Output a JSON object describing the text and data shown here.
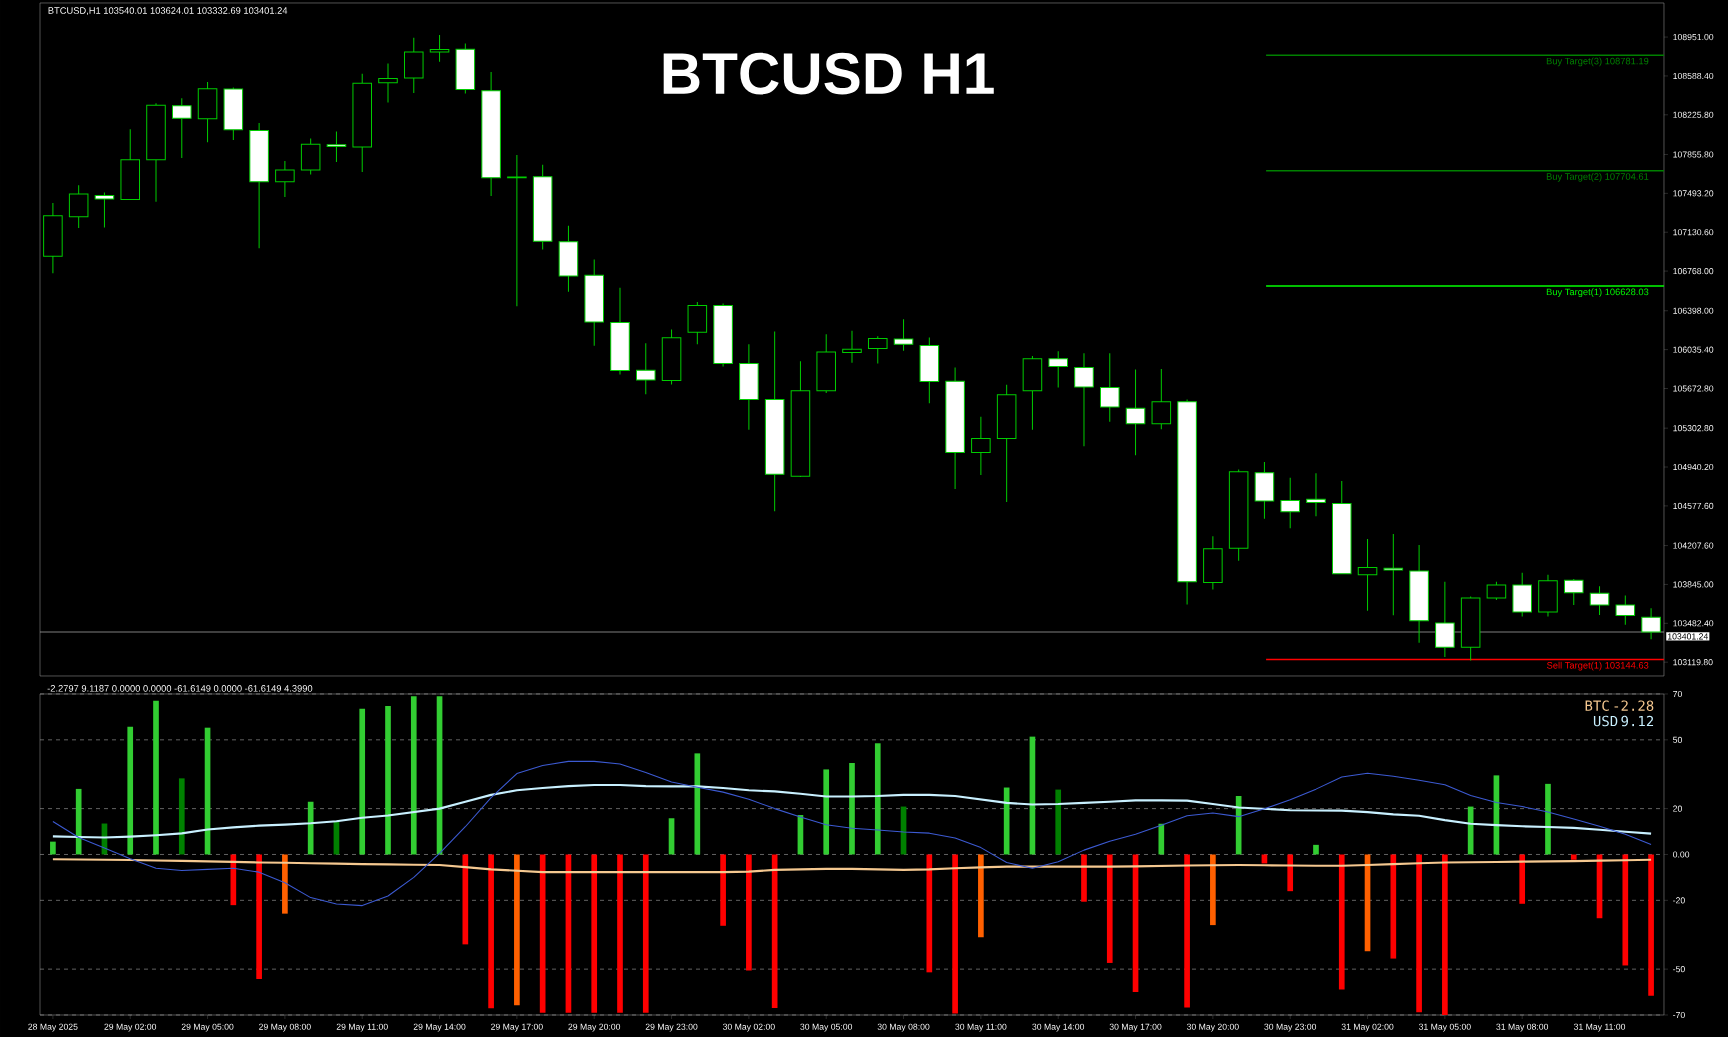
{
  "chart_data": [
    {
      "type": "candlestick",
      "title": "BTCUSD H1",
      "annotations": [
        "BTCUSD,H1  103540.01 103624.01 103332.69 103401.24"
      ],
      "categories": [
        null,
        null,
        null,
        null,
        null,
        null,
        null,
        null,
        null,
        null,
        null,
        null,
        null,
        null,
        null,
        null,
        null,
        null,
        null,
        null,
        null,
        null,
        null,
        null,
        null,
        null,
        null,
        null,
        null,
        null,
        null,
        null,
        null,
        null,
        null,
        null,
        null,
        null,
        null,
        null,
        null,
        null,
        null,
        null,
        null,
        null,
        null,
        null,
        null,
        null,
        null,
        null,
        null,
        null,
        null,
        null,
        null,
        null,
        null,
        null,
        null,
        null,
        null
      ],
      "ohlc": [
        [
          106906,
          107403,
          106748,
          107285
        ],
        [
          107274,
          107568,
          107171,
          107487
        ],
        [
          107473,
          107502,
          107175,
          107440
        ],
        [
          107436,
          108091,
          107430,
          107807
        ],
        [
          107807,
          108333,
          107414,
          108315
        ],
        [
          108311,
          108381,
          107822,
          108194
        ],
        [
          108190,
          108532,
          107969,
          108469
        ],
        [
          108466,
          108481,
          107991,
          108087
        ],
        [
          108080,
          108149,
          106980,
          107601
        ],
        [
          107601,
          107796,
          107458,
          107712
        ],
        [
          107712,
          108006,
          107668,
          107951
        ],
        [
          107947,
          108069,
          107785,
          107929
        ],
        [
          107925,
          108609,
          107693,
          108521
        ],
        [
          108525,
          108705,
          108341,
          108565
        ],
        [
          108569,
          108944,
          108429,
          108812
        ],
        [
          108812,
          108970,
          108720,
          108834
        ],
        [
          108837,
          108892,
          108425,
          108462
        ],
        [
          108451,
          108624,
          107469,
          107638
        ],
        [
          107638,
          107852,
          106439,
          107645
        ],
        [
          107649,
          107760,
          106969,
          107046
        ],
        [
          107042,
          107190,
          106575,
          106722
        ],
        [
          106730,
          106877,
          106071,
          106292
        ],
        [
          106288,
          106612,
          105803,
          105840
        ],
        [
          105843,
          106094,
          105619,
          105752
        ],
        [
          105748,
          106222,
          105711,
          106145
        ],
        [
          106197,
          106480,
          106086,
          106447
        ],
        [
          106447,
          106465,
          105877,
          105906
        ],
        [
          105906,
          106086,
          105288,
          105571
        ],
        [
          105571,
          106204,
          104527,
          104872
        ],
        [
          104854,
          105928,
          104847,
          105652
        ],
        [
          105652,
          106178,
          105630,
          106013
        ],
        [
          106009,
          106211,
          105913,
          106038
        ],
        [
          106046,
          106160,
          105906,
          106138
        ],
        [
          106134,
          106318,
          106024,
          106086
        ],
        [
          106075,
          106149,
          105534,
          105737
        ],
        [
          105740,
          105869,
          104736,
          105075
        ],
        [
          105075,
          105409,
          104865,
          105207
        ],
        [
          105207,
          105707,
          104615,
          105615
        ],
        [
          105652,
          105976,
          105288,
          105950
        ],
        [
          105950,
          106020,
          105682,
          105877
        ],
        [
          105868,
          106002,
          105133,
          105686
        ],
        [
          105682,
          106002,
          105362,
          105500
        ],
        [
          105488,
          105851,
          105051,
          105345
        ],
        [
          105345,
          105855,
          105293,
          105548
        ],
        [
          105548,
          105570,
          103658,
          103870
        ],
        [
          103862,
          104294,
          103797,
          104177
        ],
        [
          104182,
          104917,
          104065,
          104895
        ],
        [
          104887,
          104986,
          104458,
          104623
        ],
        [
          104627,
          104839,
          104368,
          104523
        ],
        [
          104640,
          104882,
          104480,
          104610
        ],
        [
          104601,
          104809,
          103940,
          103944
        ],
        [
          103935,
          104268,
          103599,
          104004
        ],
        [
          103996,
          104316,
          103558,
          103979
        ],
        [
          103970,
          104212,
          103301,
          103506
        ],
        [
          103486,
          103870,
          103168,
          103260
        ],
        [
          103258,
          103732,
          103135,
          103719
        ],
        [
          103719,
          103870,
          103700,
          103840
        ],
        [
          103840,
          103953,
          103546,
          103589
        ],
        [
          103589,
          103935,
          103546,
          103879
        ],
        [
          103883,
          103895,
          103654,
          103767
        ],
        [
          103762,
          103827,
          103560,
          103654
        ],
        [
          103654,
          103741,
          103470,
          103556
        ],
        [
          103540.01,
          103624.01,
          103332.69,
          103401.24
        ]
      ],
      "color": "#00cc00",
      "ylim": [
        102991,
        109269
      ],
      "yticks": [
        {
          "value": 108951,
          "label": "108951.00"
        },
        {
          "value": 108588.4,
          "label": "108588.40"
        },
        {
          "value": 108225.8,
          "label": "108225.80"
        },
        {
          "value": 107855.8,
          "label": "107855.80"
        },
        {
          "value": 107493.2,
          "label": "107493.20"
        },
        {
          "value": 107130.6,
          "label": "107130.60"
        },
        {
          "value": 106768,
          "label": "106768.00"
        },
        {
          "value": 106398,
          "label": "106398.00"
        },
        {
          "value": 106035.4,
          "label": "106035.40"
        },
        {
          "value": 105672.8,
          "label": "105672.80"
        },
        {
          "value": 105302.8,
          "label": "105302.80"
        },
        {
          "value": 104940.2,
          "label": "104940.20"
        },
        {
          "value": 104577.6,
          "label": "104577.60"
        },
        {
          "value": 104207.6,
          "label": "104207.60"
        },
        {
          "value": 103845,
          "label": "103845.00"
        },
        {
          "value": 103482.4,
          "label": "103482.40"
        },
        {
          "value": 103119.8,
          "label": "103119.80"
        }
      ],
      "ref_lines": [
        {
          "axis": "y",
          "value": 103401.24,
          "label": "103401.24",
          "color": "#a0a0a0"
        },
        {
          "axis": "y",
          "value": 108781.19,
          "label": "Buy Target(3) 108781.19",
          "color": "#008000"
        },
        {
          "axis": "y",
          "value": 107704.61,
          "label": "Buy Target(2) 107704.61",
          "color": "#008000"
        },
        {
          "axis": "y",
          "value": 106628.03,
          "label": "Buy Target(1) 106628.03",
          "color": "#00ff00"
        },
        {
          "axis": "y",
          "value": 103144.63,
          "label": "Sell Target(1) 103144.63",
          "color": "#ff0000"
        }
      ],
      "tick_labels": "y"
    },
    {
      "type": "bar",
      "subtitle": "-2.2797 9.1187 0.0000 0.0000 -61.6149 0.0000 -61.6149 4.3990",
      "categories": [
        "28 May 2025",
        null,
        null,
        "29 May 02:00",
        null,
        null,
        "29 May 05:00",
        null,
        null,
        "29 May 08:00",
        null,
        null,
        "29 May 11:00",
        null,
        null,
        "29 May 14:00",
        null,
        null,
        "29 May 17:00",
        null,
        null,
        "29 May 20:00",
        null,
        null,
        "29 May 23:00",
        null,
        null,
        "30 May 02:00",
        null,
        null,
        "30 May 05:00",
        null,
        null,
        "30 May 08:00",
        null,
        null,
        "30 May 11:00",
        null,
        null,
        "30 May 14:00",
        null,
        null,
        "30 May 17:00",
        null,
        null,
        "30 May 20:00",
        null,
        null,
        "30 May 23:00",
        null,
        null,
        "31 May 02:00",
        null,
        null,
        "31 May 05:00",
        null,
        null,
        "31 May 08:00",
        null,
        null,
        "31 May 11:00",
        null,
        null
      ],
      "series": [
        {
          "type": "bar",
          "values": [
            5.6,
            28.6,
            13.5,
            55.7,
            67,
            33.2,
            55.3,
            -22.1,
            -54.3,
            -25.8,
            23.0,
            14.6,
            63.6,
            64.8,
            69,
            69,
            -39.2,
            -67.1,
            -65.7,
            -69,
            -69,
            -69,
            -69,
            -69,
            15.8,
            44.1,
            -31.1,
            -50.6,
            -66.9,
            17.2,
            37.1,
            39.9,
            48.5,
            20.9,
            -51.4,
            -69.3,
            -36.1,
            29.2,
            51.4,
            28.3,
            -20.6,
            -47.3,
            -60.0,
            13.4,
            -66.7,
            -30.8,
            25.5,
            -3.9,
            -16.0,
            4.2,
            -58.9,
            -42.2,
            -45.4,
            -68.8,
            -70,
            20.9,
            34.5,
            -21.5,
            30.8,
            -2.3,
            -27.8,
            -48.4,
            -61.6
          ],
          "colors": [
            "#32cd32",
            "#32cd32",
            "#008000",
            "#32cd32",
            "#32cd32",
            "#008000",
            "#32cd32",
            "#ff0000",
            "#ff0000",
            "#ff6000",
            "#32cd32",
            "#008000",
            "#32cd32",
            "#32cd32",
            "#32cd32",
            "#32cd32",
            "#ff0000",
            "#ff0000",
            "#ff6000",
            "#ff0000",
            "#ff0000",
            "#ff0000",
            "#ff0000",
            "#ff0000",
            "#32cd32",
            "#32cd32",
            "#ff0000",
            "#ff0000",
            "#ff0000",
            "#32cd32",
            "#32cd32",
            "#32cd32",
            "#32cd32",
            "#008000",
            "#ff0000",
            "#ff0000",
            "#ff6000",
            "#32cd32",
            "#32cd32",
            "#008000",
            "#ff0000",
            "#ff0000",
            "#ff0000",
            "#32cd32",
            "#ff0000",
            "#ff6000",
            "#32cd32",
            "#ff0000",
            "#ff0000",
            "#32cd32",
            "#ff0000",
            "#ff6000",
            "#ff0000",
            "#ff0000",
            "#ff0000",
            "#32cd32",
            "#32cd32",
            "#ff0000",
            "#32cd32",
            "#ff0000",
            "#ff0000",
            "#ff0000",
            "#ff0000"
          ]
        },
        {
          "type": "line",
          "name": "BTC",
          "color": "#f5c890",
          "values": [
            -2.1,
            -2.2,
            -2.3,
            -2.4,
            -2.6,
            -2.8,
            -3.0,
            -3.2,
            -3.5,
            -3.6,
            -3.8,
            -4.0,
            -4.2,
            -4.3,
            -4.5,
            -4.6,
            -5.5,
            -6.5,
            -7.1,
            -7.7,
            -7.7,
            -7.7,
            -7.7,
            -7.7,
            -7.7,
            -7.7,
            -7.7,
            -7.5,
            -6.7,
            -6.5,
            -6.3,
            -6.3,
            -6.5,
            -6.7,
            -6.5,
            -6.0,
            -5.6,
            -5.3,
            -5.3,
            -5.3,
            -5.3,
            -5.3,
            -5.2,
            -5.0,
            -4.8,
            -4.7,
            -4.6,
            -4.7,
            -4.8,
            -4.9,
            -4.9,
            -4.6,
            -4.2,
            -3.8,
            -3.5,
            -3.4,
            -3.3,
            -3.1,
            -3.0,
            -2.9,
            -2.7,
            -2.5,
            -2.3
          ]
        },
        {
          "type": "line",
          "name": "USD",
          "color": "#c8f0ff",
          "values": [
            7.9,
            7.6,
            7.4,
            7.8,
            8.4,
            9.2,
            10.9,
            11.8,
            12.6,
            13.0,
            13.6,
            14.5,
            16.0,
            17.0,
            18.5,
            20.0,
            23,
            26,
            28,
            29,
            29.8,
            30.3,
            30.3,
            29.8,
            29.7,
            29.7,
            29,
            28,
            27.5,
            26.5,
            25.3,
            25.3,
            25.5,
            26.0,
            26.0,
            25.5,
            24,
            22.5,
            21.8,
            22.0,
            22.5,
            23.0,
            23.6,
            23.6,
            23.5,
            22,
            20.5,
            19.9,
            19.3,
            19.2,
            19.1,
            18.5,
            17.5,
            16.9,
            15,
            13.4,
            12.8,
            12.3,
            12.0,
            11.6,
            10.8,
            9.9,
            9.1
          ]
        },
        {
          "type": "line",
          "color": "#3c5ad2",
          "values": [
            14.4,
            7.4,
            2.8,
            -1.9,
            -6.0,
            -7.0,
            -6.5,
            -6.0,
            -7.7,
            -12.3,
            -18.8,
            -21.6,
            -22.3,
            -18.1,
            -10.0,
            0.5,
            12.1,
            24.8,
            35.3,
            38.8,
            40.6,
            40.6,
            39.5,
            35.8,
            31.6,
            29.3,
            27.2,
            24.1,
            20.0,
            16.3,
            13.0,
            11.4,
            10.7,
            9.8,
            9.3,
            7.2,
            3.0,
            -3.5,
            -6.0,
            -3.2,
            1.9,
            5.8,
            8.8,
            12.7,
            16.9,
            18.1,
            16.5,
            19.9,
            23.9,
            28.5,
            33.8,
            35.4,
            34.1,
            32.4,
            30.4,
            25.7,
            22.7,
            20.9,
            18.5,
            15.5,
            12.3,
            8.8,
            4.4
          ]
        }
      ],
      "ylim": [
        -70,
        70
      ],
      "yticks": [
        70,
        50,
        20,
        {
          "value": 0,
          "label": "0.00"
        },
        -20,
        -50,
        -70
      ],
      "grid": "y",
      "legend": "top right",
      "annotations": [
        "-2.28",
        "9.12"
      ]
    }
  ]
}
